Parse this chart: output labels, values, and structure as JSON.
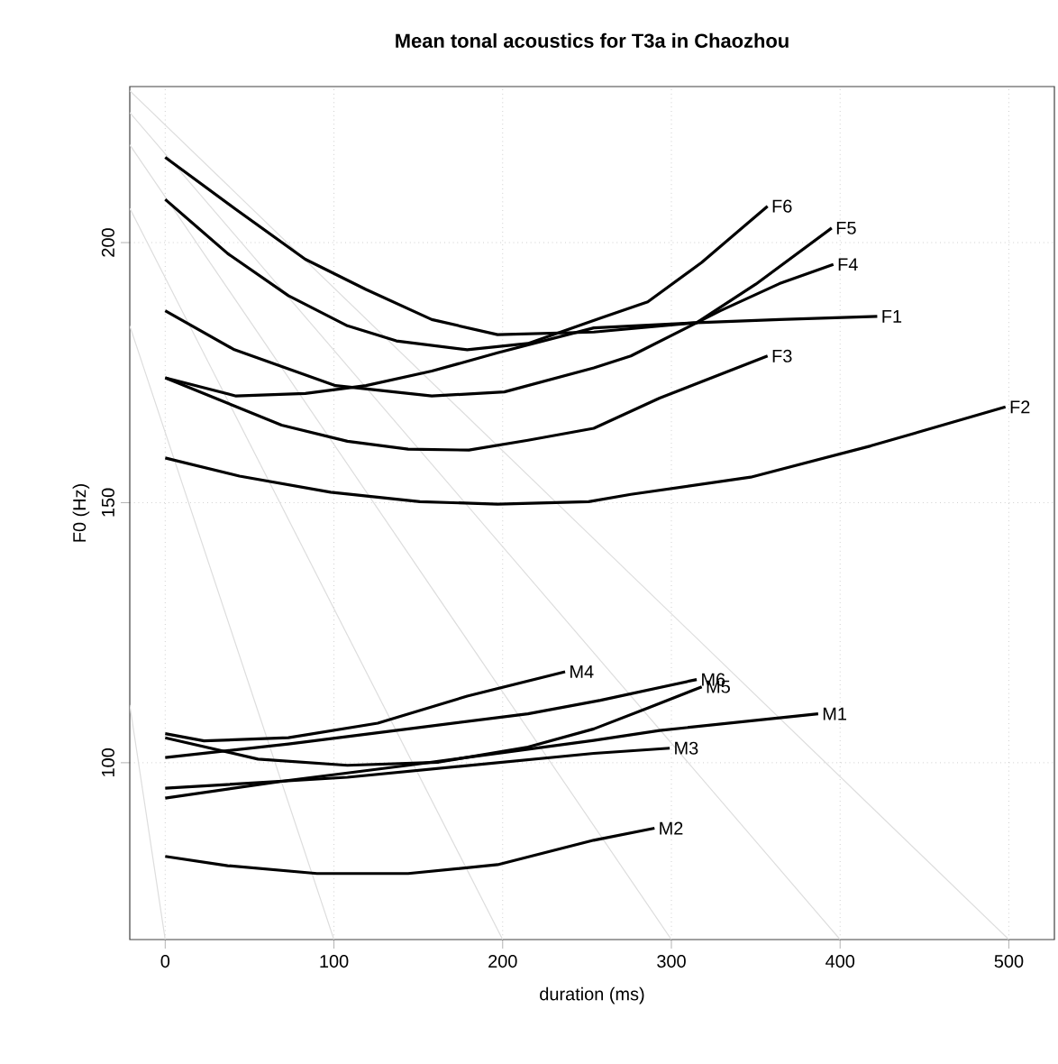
{
  "chart_data": {
    "type": "line",
    "title": "Mean tonal acoustics for T3a in Chaozhou",
    "xlabel": "duration (ms)",
    "ylabel": "F0 (Hz)",
    "xlim": [
      -21,
      527
    ],
    "ylim": [
      66,
      230
    ],
    "xticks": [
      0,
      100,
      200,
      300,
      400,
      500
    ],
    "yticks": [
      100,
      150,
      200
    ],
    "grid": true,
    "series": [
      {
        "color": "#dddddd",
        "x": [
          -21,
          500
        ],
        "values": [
          229.2,
          66
        ]
      },
      {
        "color": "#dddddd",
        "x": [
          -21,
          400
        ],
        "values": [
          225.0,
          66
        ]
      },
      {
        "color": "#dddddd",
        "x": [
          -21,
          300
        ],
        "values": [
          218.8,
          66
        ]
      },
      {
        "color": "#dddddd",
        "x": [
          -21,
          200
        ],
        "values": [
          206.6,
          66
        ]
      },
      {
        "color": "#dddddd",
        "x": [
          -21,
          100
        ],
        "values": [
          184.0,
          66
        ]
      },
      {
        "color": "#dddddd",
        "x": [
          -21,
          0
        ],
        "values": [
          111.1,
          66
        ]
      },
      {
        "name": "F1",
        "color": "#000000",
        "x": [
          0,
          42,
          83,
          119,
          158,
          197,
          254,
          315,
          364,
          422
        ],
        "values": [
          174,
          170.5,
          171,
          172.5,
          175.3,
          178.8,
          183.6,
          184.6,
          185.2,
          185.8
        ]
      },
      {
        "name": "F2",
        "color": "#000000",
        "x": [
          0,
          44,
          98,
          151,
          197,
          251,
          276,
          347,
          418,
          498
        ],
        "values": [
          158.6,
          155.1,
          152,
          150.2,
          149.7,
          150.2,
          151.6,
          154.9,
          160.9,
          168.4
        ]
      },
      {
        "name": "F3",
        "color": "#000000",
        "x": [
          0,
          69,
          108,
          144,
          180,
          215,
          254,
          293,
          357
        ],
        "values": [
          174,
          164.9,
          161.8,
          160.3,
          160.1,
          162,
          164.3,
          170.1,
          178.2
        ]
      },
      {
        "name": "F4",
        "color": "#000000",
        "x": [
          0,
          41,
          101,
          158,
          201,
          254,
          276,
          329,
          364,
          396
        ],
        "values": [
          186.9,
          179.4,
          172.5,
          170.5,
          171.3,
          175.9,
          178.2,
          186.9,
          192.1,
          195.8
        ]
      },
      {
        "name": "F5",
        "color": "#000000",
        "x": [
          0,
          41,
          83,
          119,
          158,
          197,
          254,
          315,
          350,
          395
        ],
        "values": [
          216.4,
          206.6,
          196.8,
          191,
          185.2,
          182.3,
          182.8,
          184.6,
          192,
          202.8
        ]
      },
      {
        "name": "F6",
        "color": "#000000",
        "x": [
          0,
          37,
          73,
          108,
          137,
          179,
          215,
          258,
          286,
          318,
          357
        ],
        "values": [
          208.3,
          197.9,
          189.8,
          184,
          181.1,
          179.4,
          180.6,
          185.5,
          188.6,
          196.2,
          207
        ]
      },
      {
        "name": "M1",
        "color": "#000000",
        "x": [
          0,
          73,
          144,
          254,
          293,
          387
        ],
        "values": [
          93.2,
          96.6,
          99.5,
          104.3,
          106.2,
          109.4
        ]
      },
      {
        "name": "M2",
        "color": "#000000",
        "x": [
          0,
          37,
          90,
          144,
          197,
          254,
          290
        ],
        "values": [
          82,
          80.2,
          78.7,
          78.7,
          80.4,
          85.1,
          87.4
        ]
      },
      {
        "name": "M3",
        "color": "#000000",
        "x": [
          0,
          108,
          254,
          299
        ],
        "values": [
          95.1,
          97.2,
          101.8,
          102.8
        ]
      },
      {
        "name": "M4",
        "color": "#000000",
        "x": [
          0,
          23,
          73,
          126,
          179,
          237
        ],
        "values": [
          105.6,
          104.2,
          104.8,
          107.6,
          112.8,
          117.5
        ]
      },
      {
        "name": "M5",
        "color": "#000000",
        "x": [
          0,
          55,
          108,
          162,
          215,
          254,
          286,
          318
        ],
        "values": [
          104.8,
          100.7,
          99.5,
          100.1,
          103,
          106.5,
          110.5,
          114.6
        ]
      },
      {
        "name": "M6",
        "color": "#000000",
        "x": [
          0,
          73,
          144,
          215,
          258,
          315
        ],
        "values": [
          101,
          103.6,
          106.5,
          109.4,
          112,
          116
        ]
      }
    ]
  }
}
